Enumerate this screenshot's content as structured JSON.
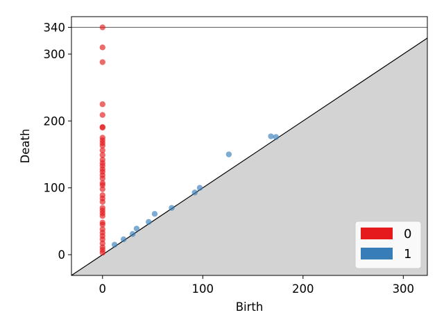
{
  "chart_data": {
    "type": "scatter",
    "title": "",
    "xlabel": "Birth",
    "ylabel": "Death",
    "xlim": [
      -31,
      324
    ],
    "ylim": [
      -31,
      356
    ],
    "infinity_value": 340,
    "x_ticks": [
      0,
      100,
      200,
      300
    ],
    "y_ticks": [
      0,
      100,
      200,
      300,
      340
    ],
    "grid": false,
    "diagonal": true,
    "legend_position": "bottom-right",
    "series": [
      {
        "name": "0",
        "color": "#e41a1c",
        "points": [
          [
            0,
            340
          ],
          [
            0,
            310
          ],
          [
            0,
            288
          ],
          [
            0,
            225
          ],
          [
            0,
            209
          ],
          [
            0,
            191
          ],
          [
            0,
            190
          ],
          [
            0,
            175
          ],
          [
            0,
            171
          ],
          [
            0,
            167
          ],
          [
            0,
            163
          ],
          [
            0,
            156
          ],
          [
            0,
            149
          ],
          [
            0,
            142
          ],
          [
            0,
            137
          ],
          [
            0,
            133
          ],
          [
            0,
            128
          ],
          [
            0,
            124
          ],
          [
            0,
            119
          ],
          [
            0,
            114
          ],
          [
            0,
            107
          ],
          [
            0,
            104
          ],
          [
            0,
            98
          ],
          [
            0,
            89
          ],
          [
            0,
            84
          ],
          [
            0,
            79
          ],
          [
            0,
            70
          ],
          [
            0,
            66
          ],
          [
            0,
            62
          ],
          [
            0,
            58
          ],
          [
            0,
            48
          ],
          [
            0,
            45
          ],
          [
            0,
            38
          ],
          [
            0,
            33
          ],
          [
            0,
            28
          ],
          [
            0,
            23
          ],
          [
            0,
            17
          ],
          [
            0,
            11
          ],
          [
            0,
            7
          ],
          [
            0,
            3
          ]
        ]
      },
      {
        "name": "1",
        "color": "#377eb8",
        "points": [
          [
            12,
            15
          ],
          [
            21,
            23
          ],
          [
            30,
            31
          ],
          [
            34,
            39
          ],
          [
            46,
            49
          ],
          [
            52,
            61
          ],
          [
            69,
            70
          ],
          [
            92,
            93
          ],
          [
            97,
            100
          ],
          [
            126,
            150
          ],
          [
            168,
            177
          ],
          [
            173,
            176
          ]
        ]
      }
    ]
  }
}
